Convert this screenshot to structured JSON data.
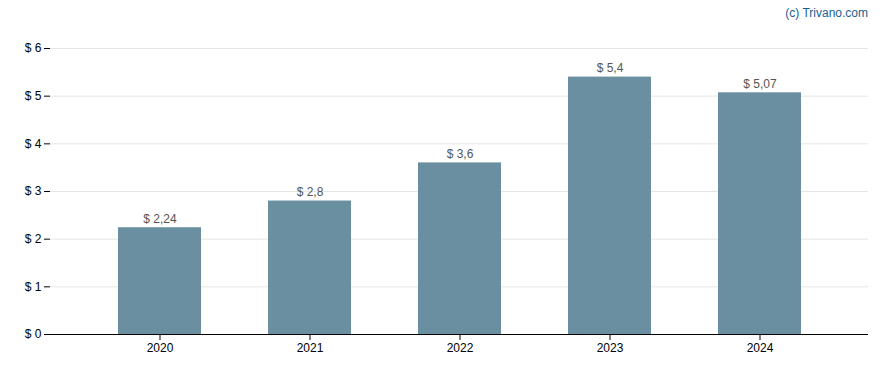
{
  "chart_data": {
    "type": "bar",
    "categories": [
      "2020",
      "2021",
      "2022",
      "2023",
      "2024"
    ],
    "values": [
      2.24,
      2.8,
      3.6,
      5.4,
      5.07
    ],
    "value_labels": [
      "$ 2,24",
      "$ 2,8",
      "$ 3,6",
      "$ 5,4",
      "$ 5,07"
    ],
    "color": "#6a8fa0",
    "ylim": [
      0,
      6
    ],
    "yticks": [
      {
        "value": 0,
        "label": "$ 0"
      },
      {
        "value": 1,
        "label": "$ 1"
      },
      {
        "value": 2,
        "label": "$ 2"
      },
      {
        "value": 3,
        "label": "$ 3"
      },
      {
        "value": 4,
        "label": "$ 4"
      },
      {
        "value": 5,
        "label": "$ 5"
      },
      {
        "value": 6,
        "label": "$ 6"
      }
    ],
    "grid": true,
    "data_labels": true,
    "annotations": [
      "(c) Trivano.com"
    ]
  }
}
